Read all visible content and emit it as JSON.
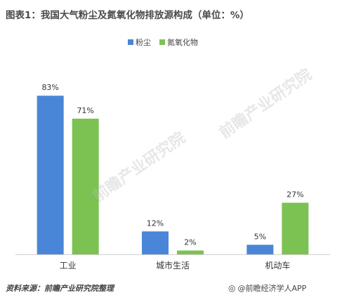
{
  "title": "图表1：我国大气粉尘及氮氧化物排放源构成（单位：%）",
  "source": "资料来源：前瞻产业研究院整理",
  "credit": "@前瞻经济学人APP",
  "watermark": "前瞻产业研究院",
  "colors": {
    "dust": "#4a86d8",
    "nox": "#7cc253"
  },
  "chart_data": {
    "type": "bar",
    "title": "图表1：我国大气粉尘及氮氧化物排放源构成（单位：%）",
    "categories": [
      "工业",
      "城市生活",
      "机动车"
    ],
    "series": [
      {
        "name": "粉尘",
        "values": [
          83,
          12,
          5
        ],
        "labels": [
          "83%",
          "12%",
          "5%"
        ],
        "color": "#4a86d8"
      },
      {
        "name": "氮氧化物",
        "values": [
          71,
          2,
          27
        ],
        "labels": [
          "71%",
          "2%",
          "27%"
        ],
        "color": "#7cc253"
      }
    ],
    "ylim": [
      0,
      100
    ],
    "grid": false,
    "legend": "top"
  }
}
